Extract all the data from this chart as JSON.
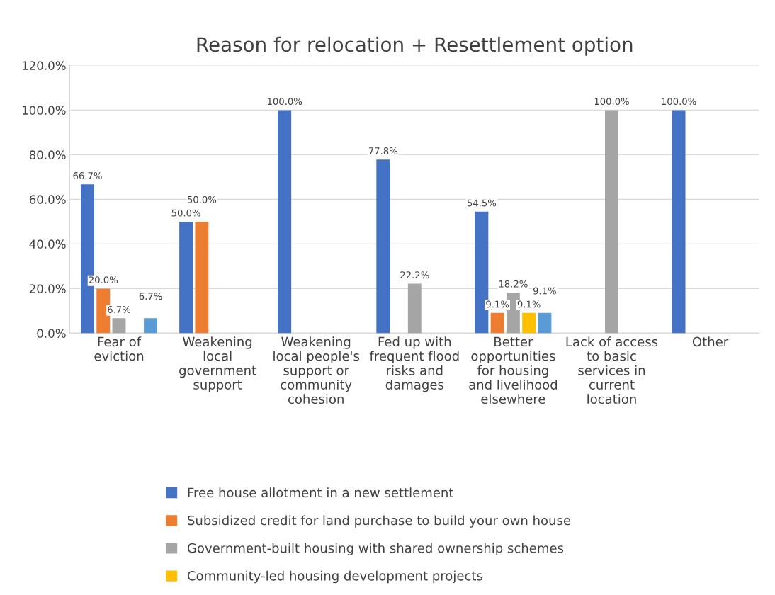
{
  "chart_data": {
    "type": "bar",
    "title": "Reason for relocation + Resettlement option",
    "categories": [
      "Fear of eviction",
      "Weakening local government support",
      "Weakening local people's support or community cohesion",
      "Fed up with frequent flood risks and damages",
      "Better opportunities for housing and livelihood elsewhere",
      "Lack of access to basic services in current location",
      "Other"
    ],
    "series": [
      {
        "name": "Free house allotment in a new settlement",
        "color": "#4472c4",
        "values": [
          66.7,
          50.0,
          100.0,
          77.8,
          54.5,
          null,
          100.0
        ],
        "value_labels": [
          "66.7%",
          "50.0%",
          "100.0%",
          "77.8%",
          "54.5%",
          null,
          "100.0%"
        ]
      },
      {
        "name": "Subsidized credit for land purchase to build your own house",
        "color": "#ed7d31",
        "values": [
          20.0,
          50.0,
          null,
          null,
          9.1,
          null,
          null
        ],
        "value_labels": [
          "20.0%",
          "50.0%",
          null,
          null,
          "9.1%",
          null,
          null
        ]
      },
      {
        "name": "Government-built housing with shared ownership schemes",
        "color": "#a5a5a5",
        "values": [
          6.7,
          null,
          null,
          22.2,
          18.2,
          100.0,
          null
        ],
        "value_labels": [
          "6.7%",
          null,
          null,
          "22.2%",
          "18.2%",
          "100.0%",
          null
        ]
      },
      {
        "name": "Community-led housing development projects",
        "color": "#ffc000",
        "values": [
          null,
          null,
          null,
          null,
          9.1,
          null,
          null
        ],
        "value_labels": [
          null,
          null,
          null,
          null,
          "9.1%",
          null,
          null
        ]
      },
      {
        "color": "#5b9bd5",
        "values": [
          6.7,
          null,
          null,
          null,
          9.1,
          null,
          null
        ],
        "value_labels": [
          "6.7%",
          null,
          null,
          null,
          "9.1%",
          null,
          null
        ]
      }
    ],
    "ylim": [
      0,
      120
    ],
    "yticks": [
      {
        "value": 0,
        "label": "0.0%"
      },
      {
        "value": 20,
        "label": "20.0%"
      },
      {
        "value": 40,
        "label": "40.0%"
      },
      {
        "value": 60,
        "label": "60.0%"
      },
      {
        "value": 80,
        "label": "80.0%"
      },
      {
        "value": 100,
        "label": "100.0%"
      },
      {
        "value": 120,
        "label": "120.0%"
      }
    ],
    "grid": "y",
    "legend": "bottom"
  }
}
